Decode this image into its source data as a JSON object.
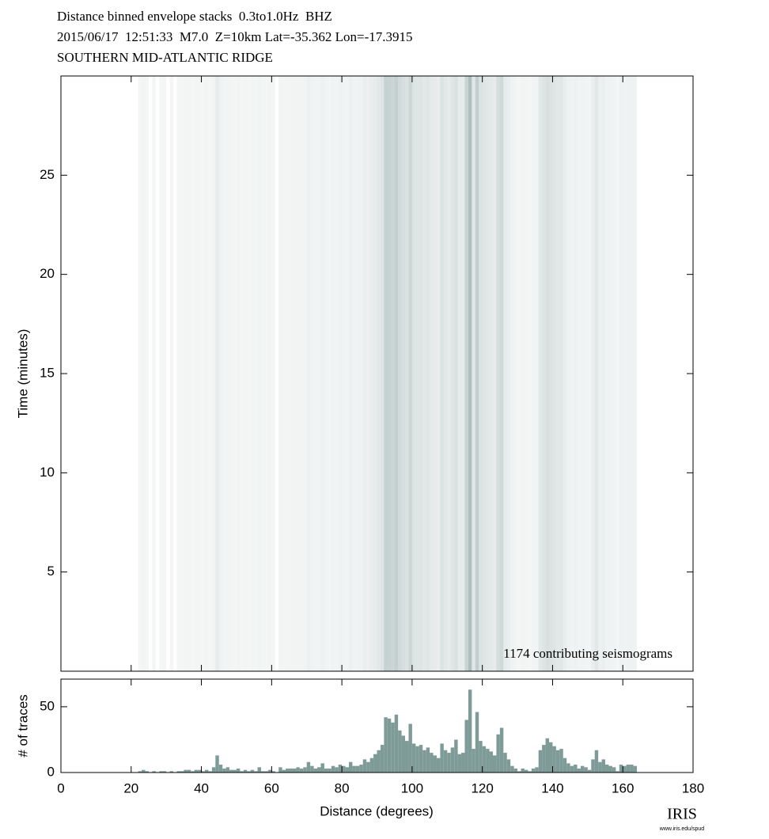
{
  "chart_data": [
    {
      "type": "heatmap",
      "title": "Distance binned envelope stacks  0.3to1.0Hz  BHZ",
      "subtitle": [
        "2015/06/17  12:51:33  M7.0  Z=10km Lat=-35.362 Lon=-17.3915",
        "SOUTHERN MID-ATLANTIC RIDGE"
      ],
      "ylabel": "Time (minutes)",
      "annotation": "1174 contributing seismograms",
      "xlim": [
        0,
        180
      ],
      "ylim": [
        0,
        30
      ],
      "yticks": [
        5,
        10,
        15,
        20,
        25
      ],
      "color": "#5f7f7e"
    },
    {
      "type": "histogram",
      "xlabel": "Distance (degrees)",
      "ylabel": "# of traces",
      "xlim": [
        0,
        180
      ],
      "ylim": [
        0,
        71
      ],
      "xticks": [
        0,
        20,
        40,
        60,
        80,
        100,
        120,
        140,
        160,
        180
      ],
      "yticks": [
        0,
        50
      ],
      "color": "#7f9b98",
      "bins": [
        22,
        23,
        24,
        25,
        26,
        27,
        28,
        29,
        30,
        31,
        32,
        33,
        34,
        35,
        36,
        37,
        38,
        39,
        40,
        41,
        42,
        43,
        44,
        45,
        46,
        47,
        48,
        49,
        50,
        51,
        52,
        53,
        54,
        55,
        56,
        57,
        58,
        59,
        60,
        61,
        62,
        63,
        64,
        65,
        66,
        67,
        68,
        69,
        70,
        71,
        72,
        73,
        74,
        75,
        76,
        77,
        78,
        79,
        80,
        81,
        82,
        83,
        84,
        85,
        86,
        87,
        88,
        89,
        90,
        91,
        92,
        93,
        94,
        95,
        96,
        97,
        98,
        99,
        100,
        101,
        102,
        103,
        104,
        105,
        106,
        107,
        108,
        109,
        110,
        111,
        112,
        113,
        114,
        115,
        116,
        117,
        118,
        119,
        120,
        121,
        122,
        123,
        124,
        125,
        126,
        127,
        128,
        129,
        130,
        131,
        132,
        133,
        134,
        135,
        136,
        137,
        138,
        139,
        140,
        141,
        142,
        143,
        144,
        145,
        146,
        147,
        148,
        149,
        150,
        151,
        152,
        153,
        154,
        155,
        156,
        157,
        158,
        159,
        160,
        161,
        162,
        163,
        164
      ],
      "values": [
        1,
        2,
        1,
        0,
        1,
        0,
        1,
        1,
        0,
        1,
        0,
        1,
        1,
        2,
        2,
        1,
        2,
        2,
        1,
        2,
        1,
        4,
        13,
        6,
        3,
        4,
        2,
        2,
        3,
        1,
        2,
        1,
        2,
        1,
        4,
        1,
        1,
        2,
        1,
        0,
        4,
        2,
        3,
        3,
        3,
        4,
        3,
        4,
        8,
        5,
        3,
        4,
        7,
        3,
        3,
        5,
        4,
        6,
        5,
        4,
        8,
        5,
        5,
        6,
        10,
        8,
        11,
        14,
        17,
        21,
        42,
        41,
        38,
        44,
        32,
        28,
        24,
        37,
        22,
        20,
        21,
        17,
        19,
        15,
        13,
        11,
        22,
        17,
        15,
        19,
        25,
        14,
        15,
        40,
        63,
        18,
        46,
        24,
        20,
        18,
        16,
        13,
        29,
        34,
        15,
        10,
        5,
        3,
        1,
        3,
        2,
        1,
        3,
        4,
        17,
        21,
        26,
        23,
        20,
        17,
        18,
        11,
        7,
        5,
        6,
        3,
        5,
        4,
        2,
        10,
        17,
        8,
        10,
        6,
        5,
        4,
        1,
        6,
        5,
        6,
        6,
        5
      ],
      "logo_text": "IRIS",
      "logo_url": "www.iris.edu/spud"
    }
  ]
}
